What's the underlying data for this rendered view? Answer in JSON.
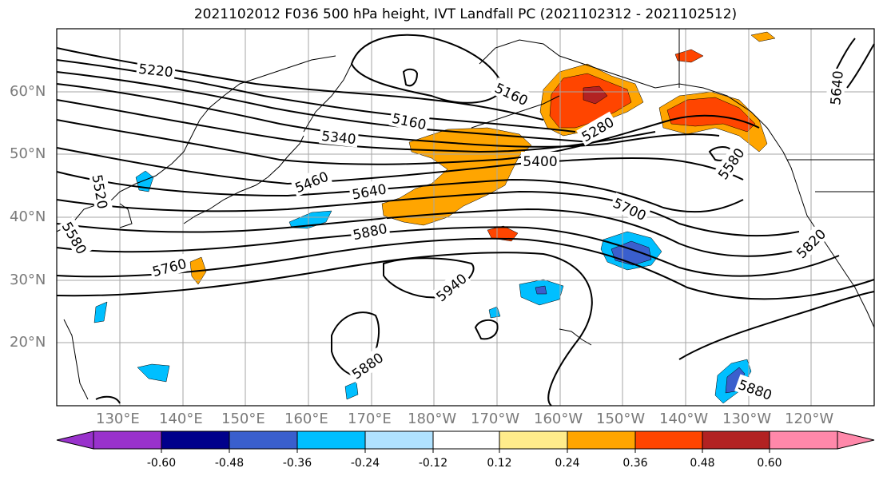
{
  "title": "2021102012 F036 500 hPa height, IVT Landfall PC (2021102312 - 2021102512)",
  "latitude_labels": [
    "60°N",
    "50°N",
    "40°N",
    "30°N",
    "20°N"
  ],
  "longitude_labels": [
    "130°E",
    "140°E",
    "150°E",
    "160°E",
    "170°E",
    "180°W",
    "170°W",
    "160°W",
    "150°W",
    "140°W",
    "130°W",
    "120°W"
  ],
  "contour_labels": [
    "5220",
    "5160",
    "5160",
    "5340",
    "5400",
    "5280",
    "5460",
    "5640",
    "5700",
    "5880",
    "5760",
    "5940",
    "5880",
    "5880",
    "5820",
    "5640",
    "5520",
    "5580",
    "5580"
  ],
  "colorbar": {
    "ticks": [
      "-0.60",
      "-0.48",
      "-0.36",
      "-0.24",
      "-0.12",
      "0.12",
      "0.24",
      "0.36",
      "0.48",
      "0.60"
    ],
    "colors": [
      "#9932cc",
      "#00008b",
      "#3a5fcd",
      "#00bfff",
      "#b0e2ff",
      "#ffffff",
      "#ffec8b",
      "#ffa500",
      "#ff4500",
      "#b22222",
      "#ff88aa",
      "#ff88aa"
    ]
  }
}
